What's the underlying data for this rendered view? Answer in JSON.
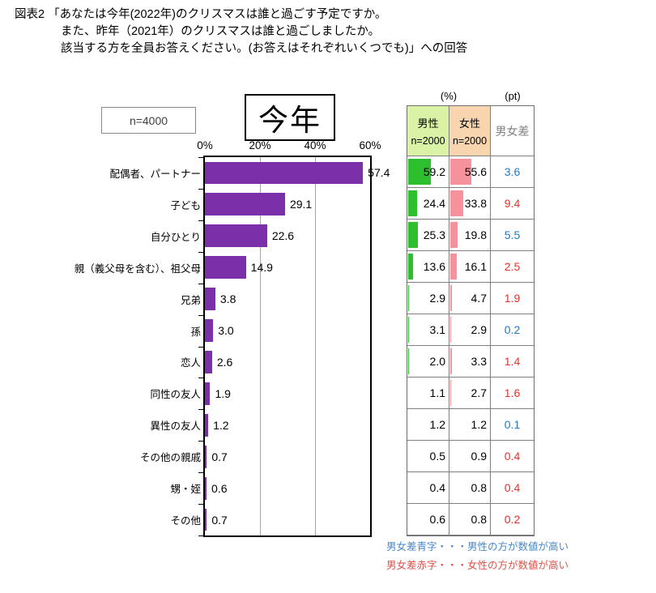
{
  "title": {
    "line1": "図表2 「あなたは今年(2022年)のクリスマスは誰と過ごす予定ですか。",
    "line2": "また、昨年（2021年）のクリスマスは誰と過ごしましたか。",
    "line3": "該当する方を全員お答えください。(お答えはそれぞれいくつでも)」への回答"
  },
  "chart_data": {
    "type": "bar",
    "orientation": "horizontal",
    "title": "今年",
    "n_label": "n=4000",
    "xlim": [
      0,
      60
    ],
    "xticks": [
      "0%",
      "20%",
      "40%",
      "60%"
    ],
    "grid": true,
    "bar_color": "#7b2fa8",
    "categories": [
      "配偶者、パートナー",
      "子ども",
      "自分ひとり",
      "親（義父母を含む）、祖父母",
      "兄弟",
      "孫",
      "恋人",
      "同性の友人",
      "異性の友人",
      "その他の親戚",
      "甥・姪",
      "その他"
    ],
    "values": [
      "57.4",
      "29.1",
      "22.6",
      "14.9",
      "3.8",
      "3.0",
      "2.6",
      "1.9",
      "1.2",
      "0.7",
      "0.6",
      "0.7"
    ],
    "series": [
      {
        "name": "男性",
        "n": "n=2000",
        "values": [
          "59.2",
          "24.4",
          "25.3",
          "13.6",
          "2.9",
          "3.1",
          "2.0",
          "1.1",
          "1.2",
          "0.5",
          "0.4",
          "0.6"
        ]
      },
      {
        "name": "女性",
        "n": "n=2000",
        "values": [
          "55.6",
          "33.8",
          "19.8",
          "16.1",
          "4.7",
          "2.9",
          "3.3",
          "2.7",
          "1.2",
          "0.9",
          "0.8",
          "0.8"
        ]
      }
    ],
    "diff": [
      {
        "value": "3.6",
        "higher": "male"
      },
      {
        "value": "9.4",
        "higher": "female"
      },
      {
        "value": "5.5",
        "higher": "male"
      },
      {
        "value": "2.5",
        "higher": "female"
      },
      {
        "value": "1.9",
        "higher": "female"
      },
      {
        "value": "0.2",
        "higher": "male"
      },
      {
        "value": "1.4",
        "higher": "female"
      },
      {
        "value": "1.6",
        "higher": "female"
      },
      {
        "value": "0.1",
        "higher": "male"
      },
      {
        "value": "0.4",
        "higher": "female"
      },
      {
        "value": "0.4",
        "higher": "female"
      },
      {
        "value": "0.2",
        "higher": "female"
      }
    ]
  },
  "table": {
    "unit_percent": "(%)",
    "unit_pt": "(pt)",
    "male_label": "男性",
    "male_n": "n=2000",
    "female_label": "女性",
    "female_n": "n=2000",
    "diff_label": "男女差",
    "male_header_bg": "#d9f2a5",
    "female_header_bg": "#f8d5ae",
    "male_bar_color": "#2ebf2e",
    "female_bar_color": "#f5929b",
    "blue": "#2777c4",
    "red": "#e5332e"
  },
  "footnotes": [
    {
      "text": "男女差青字・・・男性の方が数値が高い",
      "color": "blue"
    },
    {
      "text": "男女差赤字・・・女性の方が数値が高い",
      "color": "red"
    }
  ]
}
